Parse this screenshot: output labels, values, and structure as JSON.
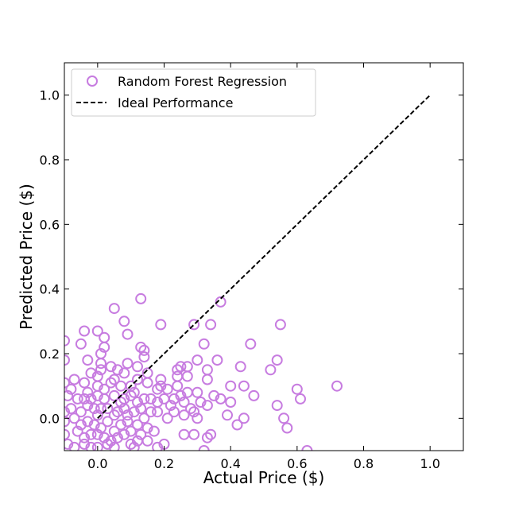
{
  "chart_data": {
    "type": "scatter",
    "xlabel": "Actual Price ($)",
    "ylabel": "Predicted Price ($)",
    "xlim": [
      -0.1,
      1.1
    ],
    "ylim": [
      -0.1,
      1.1
    ],
    "xticks": [
      "0.0",
      "0.2",
      "0.4",
      "0.6",
      "0.8",
      "1.0"
    ],
    "yticks": [
      "0.0",
      "0.2",
      "0.4",
      "0.6",
      "0.8",
      "1.0"
    ],
    "grid": false,
    "legend_position": "top-left",
    "colors": {
      "scatter": "#c77ce0",
      "ideal": "#000000"
    },
    "series": [
      {
        "name": "Random Forest Regression",
        "kind": "scatter",
        "points": [
          [
            0.13,
            0.37
          ],
          [
            0.05,
            0.34
          ],
          [
            0.37,
            0.36
          ],
          [
            0.08,
            0.3
          ],
          [
            0.19,
            0.29
          ],
          [
            0.29,
            0.29
          ],
          [
            0.34,
            0.29
          ],
          [
            0.55,
            0.29
          ],
          [
            -0.04,
            0.27
          ],
          [
            0.09,
            0.26
          ],
          [
            0.0,
            0.27
          ],
          [
            -0.1,
            0.24
          ],
          [
            -0.05,
            0.23
          ],
          [
            0.02,
            0.25
          ],
          [
            0.02,
            0.22
          ],
          [
            0.13,
            0.22
          ],
          [
            0.14,
            0.21
          ],
          [
            0.32,
            0.23
          ],
          [
            0.46,
            0.23
          ],
          [
            0.01,
            0.2
          ],
          [
            0.09,
            0.17
          ],
          [
            0.14,
            0.19
          ],
          [
            0.43,
            0.16
          ],
          [
            0.52,
            0.15
          ],
          [
            0.54,
            0.18
          ],
          [
            -0.1,
            0.18
          ],
          [
            -0.03,
            0.18
          ],
          [
            0.01,
            0.17
          ],
          [
            0.04,
            0.16
          ],
          [
            0.06,
            0.15
          ],
          [
            0.12,
            0.16
          ],
          [
            0.15,
            0.14
          ],
          [
            0.24,
            0.15
          ],
          [
            0.25,
            0.16
          ],
          [
            0.27,
            0.16
          ],
          [
            0.3,
            0.18
          ],
          [
            0.33,
            0.15
          ],
          [
            0.36,
            0.18
          ],
          [
            -0.02,
            0.14
          ],
          [
            0.01,
            0.15
          ],
          [
            0.0,
            0.13
          ],
          [
            0.05,
            0.12
          ],
          [
            0.08,
            0.14
          ],
          [
            0.12,
            0.12
          ],
          [
            0.19,
            0.12
          ],
          [
            0.24,
            0.13
          ],
          [
            0.27,
            0.13
          ],
          [
            0.33,
            0.12
          ],
          [
            0.4,
            0.1
          ],
          [
            0.44,
            0.1
          ],
          [
            0.47,
            0.07
          ],
          [
            0.6,
            0.09
          ],
          [
            0.72,
            0.1
          ],
          [
            -0.1,
            0.11
          ],
          [
            -0.08,
            0.09
          ],
          [
            -0.07,
            0.12
          ],
          [
            -0.04,
            0.11
          ],
          [
            -0.03,
            0.08
          ],
          [
            0.0,
            0.1
          ],
          [
            0.02,
            0.09
          ],
          [
            0.04,
            0.11
          ],
          [
            0.07,
            0.1
          ],
          [
            0.1,
            0.1
          ],
          [
            0.11,
            0.08
          ],
          [
            0.15,
            0.11
          ],
          [
            0.18,
            0.09
          ],
          [
            0.19,
            0.1
          ],
          [
            0.21,
            0.09
          ],
          [
            0.24,
            0.1
          ],
          [
            0.27,
            0.08
          ],
          [
            0.3,
            0.08
          ],
          [
            0.35,
            0.07
          ],
          [
            0.37,
            0.06
          ],
          [
            0.4,
            0.05
          ],
          [
            0.54,
            0.04
          ],
          [
            0.61,
            0.06
          ],
          [
            -0.09,
            0.07
          ],
          [
            -0.06,
            0.06
          ],
          [
            -0.04,
            0.06
          ],
          [
            -0.02,
            0.06
          ],
          [
            0.0,
            0.07
          ],
          [
            0.02,
            0.06
          ],
          [
            0.05,
            0.07
          ],
          [
            0.07,
            0.05
          ],
          [
            0.08,
            0.06
          ],
          [
            0.1,
            0.07
          ],
          [
            0.12,
            0.05
          ],
          [
            0.14,
            0.06
          ],
          [
            0.16,
            0.06
          ],
          [
            0.18,
            0.05
          ],
          [
            0.2,
            0.06
          ],
          [
            0.22,
            0.04
          ],
          [
            0.23,
            0.06
          ],
          [
            0.25,
            0.07
          ],
          [
            0.26,
            0.05
          ],
          [
            0.28,
            0.03
          ],
          [
            0.31,
            0.05
          ],
          [
            0.33,
            0.04
          ],
          [
            0.39,
            0.01
          ],
          [
            0.44,
            0.0
          ],
          [
            0.56,
            0.0
          ],
          [
            -0.1,
            0.02
          ],
          [
            -0.08,
            0.03
          ],
          [
            -0.05,
            0.02
          ],
          [
            -0.03,
            0.04
          ],
          [
            -0.01,
            0.03
          ],
          [
            0.0,
            0.01
          ],
          [
            0.01,
            0.03
          ],
          [
            0.03,
            0.03
          ],
          [
            0.05,
            0.01
          ],
          [
            0.06,
            0.02
          ],
          [
            0.08,
            0.03
          ],
          [
            0.09,
            0.01
          ],
          [
            0.11,
            0.02
          ],
          [
            0.13,
            0.03
          ],
          [
            0.14,
            0.0
          ],
          [
            0.16,
            0.02
          ],
          [
            0.18,
            0.02
          ],
          [
            0.21,
            0.0
          ],
          [
            0.23,
            0.02
          ],
          [
            0.26,
            0.01
          ],
          [
            0.29,
            0.02
          ],
          [
            0.3,
            0.0
          ],
          [
            0.42,
            -0.02
          ],
          [
            0.57,
            -0.03
          ],
          [
            -0.1,
            -0.01
          ],
          [
            -0.07,
            0.0
          ],
          [
            -0.05,
            -0.02
          ],
          [
            -0.03,
            -0.01
          ],
          [
            -0.01,
            -0.02
          ],
          [
            0.01,
            -0.03
          ],
          [
            0.03,
            -0.01
          ],
          [
            0.05,
            -0.04
          ],
          [
            0.07,
            -0.02
          ],
          [
            0.09,
            -0.01
          ],
          [
            0.1,
            -0.04
          ],
          [
            0.12,
            -0.02
          ],
          [
            0.13,
            -0.05
          ],
          [
            0.15,
            -0.03
          ],
          [
            0.17,
            -0.04
          ],
          [
            0.26,
            -0.05
          ],
          [
            0.29,
            -0.05
          ],
          [
            0.33,
            -0.06
          ],
          [
            0.34,
            -0.05
          ],
          [
            -0.1,
            -0.05
          ],
          [
            -0.06,
            -0.04
          ],
          [
            -0.04,
            -0.06
          ],
          [
            -0.02,
            -0.05
          ],
          [
            0.0,
            -0.05
          ],
          [
            0.02,
            -0.06
          ],
          [
            0.04,
            -0.07
          ],
          [
            0.06,
            -0.06
          ],
          [
            0.08,
            -0.05
          ],
          [
            0.1,
            -0.08
          ],
          [
            0.12,
            -0.07
          ],
          [
            0.15,
            -0.07
          ],
          [
            0.2,
            -0.08
          ],
          [
            -0.09,
            -0.08
          ],
          [
            -0.07,
            -0.09
          ],
          [
            -0.04,
            -0.08
          ],
          [
            -0.02,
            -0.09
          ],
          [
            0.0,
            -0.09
          ],
          [
            0.03,
            -0.08
          ],
          [
            0.05,
            -0.09
          ],
          [
            0.11,
            -0.09
          ],
          [
            0.18,
            -0.09
          ],
          [
            0.32,
            -0.1
          ],
          [
            0.63,
            -0.1
          ]
        ]
      },
      {
        "name": "Ideal Performance",
        "kind": "line",
        "points": [
          [
            0.0,
            0.0
          ],
          [
            1.0,
            1.0
          ]
        ]
      }
    ]
  }
}
